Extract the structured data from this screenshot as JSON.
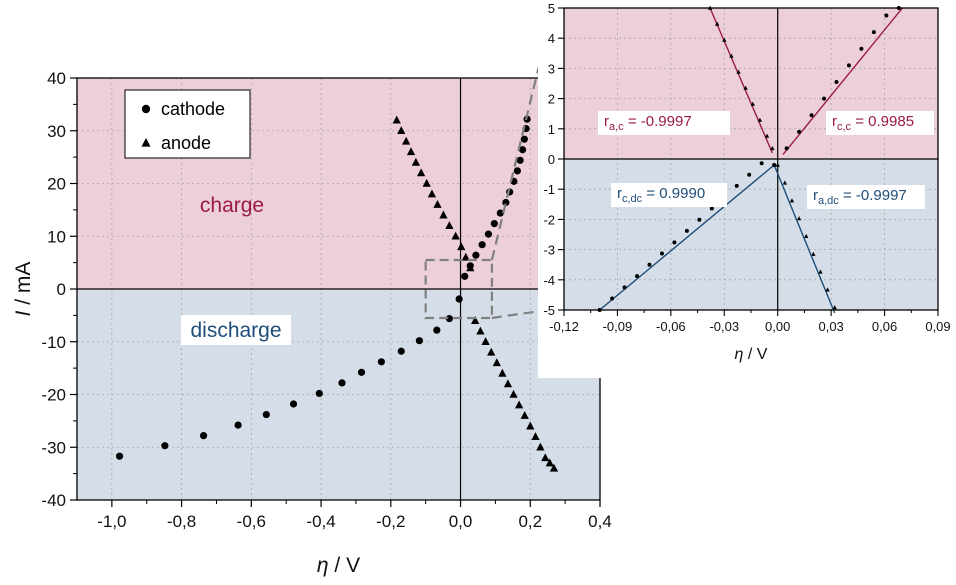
{
  "colors": {
    "charge_bg": "#edcfda",
    "discharge_bg": "#d5dee8",
    "charge_text": "#9a1a44",
    "discharge_text": "#1f4e79",
    "grid": "#a8a8a8",
    "markers": "#000000",
    "zoom_box": "#808080"
  },
  "chart_data": [
    {
      "type": "scatter",
      "id": "main",
      "xlabel_symbol": "η",
      "xlabel_unit": " / V",
      "ylabel_symbol": "I",
      "ylabel_unit": " / mA",
      "xlim": [
        -1.1,
        0.4
      ],
      "ylim": [
        -40,
        40
      ],
      "xticks": [
        -1.0,
        -0.8,
        -0.6,
        -0.4,
        -0.2,
        0.0,
        0.2,
        0.4
      ],
      "xtick_labels": [
        "-1,0",
        "-0,8",
        "-0,6",
        "-0,4",
        "-0,2",
        "0,0",
        "0,2",
        "0,4"
      ],
      "yticks": [
        -40,
        -30,
        -20,
        -10,
        0,
        10,
        20,
        30,
        40
      ],
      "ytick_labels": [
        "-40",
        "-30",
        "-20",
        "-10",
        "0",
        "10",
        "20",
        "30",
        "40"
      ],
      "grid": true,
      "legend": {
        "position": "top-left",
        "entries": [
          {
            "label": "cathode",
            "marker": "circle"
          },
          {
            "label": "anode",
            "marker": "triangle"
          }
        ]
      },
      "region_labels": {
        "charge": "charge",
        "discharge": "discharge"
      },
      "series": [
        {
          "name": "cathode",
          "marker": "circle",
          "x": [
            -0.978,
            -0.848,
            -0.737,
            -0.638,
            -0.557,
            -0.479,
            -0.405,
            -0.34,
            -0.284,
            -0.227,
            -0.17,
            -0.118,
            -0.068,
            -0.032,
            -0.004,
            0.012,
            0.028,
            0.044,
            0.062,
            0.08,
            0.097,
            0.114,
            0.13,
            0.141,
            0.153,
            0.163,
            0.171,
            0.178,
            0.183,
            0.188,
            0.191
          ],
          "y": [
            -31.7,
            -29.7,
            -27.8,
            -25.8,
            -23.8,
            -21.8,
            -19.8,
            -17.8,
            -15.8,
            -13.8,
            -11.8,
            -9.8,
            -7.8,
            -5.6,
            -1.9,
            2.4,
            4.4,
            6.4,
            8.4,
            10.4,
            12.4,
            14.4,
            16.4,
            18.4,
            20.4,
            22.4,
            24.4,
            26.4,
            28.4,
            30.4,
            32.2
          ],
          "label": "cathode"
        },
        {
          "name": "anode",
          "marker": "triangle",
          "x": [
            -0.183,
            -0.17,
            -0.156,
            -0.142,
            -0.128,
            -0.113,
            -0.097,
            -0.082,
            -0.066,
            -0.049,
            -0.032,
            -0.014,
            0.002,
            0.015,
            0.028,
            0.042,
            0.057,
            0.072,
            0.088,
            0.104,
            0.12,
            0.136,
            0.152,
            0.168,
            0.184,
            0.2,
            0.215,
            0.229,
            0.243,
            0.256,
            0.268
          ],
          "y": [
            32.0,
            30.0,
            28.0,
            26.0,
            24.0,
            22.0,
            20.0,
            18.0,
            16.0,
            14.0,
            12.0,
            10.0,
            8.0,
            6.0,
            4.0,
            -6.0,
            -8.0,
            -10.0,
            -12.0,
            -14.0,
            -16.0,
            -18.0,
            -20.0,
            -22.0,
            -24.0,
            -26.0,
            -28.0,
            -30.0,
            -32.0,
            -33.0,
            -34.0
          ],
          "label": "anode"
        }
      ],
      "zoom_box": {
        "x": [
          -0.1,
          0.09
        ],
        "y": [
          -5.5,
          5.5
        ]
      }
    },
    {
      "type": "scatter",
      "id": "inset",
      "xlabel_symbol": "η",
      "xlabel_unit": " / V",
      "xlim": [
        -0.12,
        0.09
      ],
      "ylim": [
        -5,
        5
      ],
      "xticks": [
        -0.12,
        -0.09,
        -0.06,
        -0.03,
        0.0,
        0.03,
        0.06,
        0.09
      ],
      "xtick_labels": [
        "-0,12",
        "-0,09",
        "-0,06",
        "-0,03",
        "0,00",
        "0,03",
        "0,06",
        "0,09"
      ],
      "yticks": [
        -5,
        -4,
        -3,
        -2,
        -1,
        0,
        1,
        2,
        3,
        4,
        5
      ],
      "ytick_labels": [
        "-5",
        "-4",
        "-3",
        "-2",
        "-1",
        "0",
        "1",
        "2",
        "3",
        "4",
        "5"
      ],
      "grid": true,
      "annotations": [
        {
          "base": "r",
          "sub": "a,c",
          "value": " = -0.9997",
          "region": "charge"
        },
        {
          "base": "r",
          "sub": "c,c",
          "value": " = 0.9985",
          "region": "charge"
        },
        {
          "base": "r",
          "sub": "c,dc",
          "value": " = 0.9990",
          "region": "discharge"
        },
        {
          "base": "r",
          "sub": "a,dc",
          "value": " = -0.9997",
          "region": "discharge"
        }
      ],
      "series": [
        {
          "name": "cathode",
          "marker": "circle",
          "x": [
            -0.1,
            -0.093,
            -0.086,
            -0.079,
            -0.072,
            -0.065,
            -0.058,
            -0.051,
            -0.044,
            -0.037,
            -0.03,
            -0.023,
            -0.016,
            -0.009,
            -0.002,
            0.005,
            0.012,
            0.019,
            0.026,
            0.033,
            0.04,
            0.047,
            0.054,
            0.061,
            0.068
          ],
          "y": [
            -5.0,
            -4.62,
            -4.25,
            -3.88,
            -3.5,
            -3.13,
            -2.76,
            -2.38,
            -2.01,
            -1.64,
            -1.26,
            -0.89,
            -0.52,
            -0.14,
            -0.2,
            0.35,
            0.9,
            1.45,
            2.0,
            2.55,
            3.1,
            3.65,
            4.2,
            4.75,
            5.0
          ]
        },
        {
          "name": "anode",
          "marker": "triangle",
          "x": [
            -0.038,
            -0.034,
            -0.03,
            -0.026,
            -0.022,
            -0.018,
            -0.014,
            -0.01,
            -0.006,
            -0.003,
            0.0,
            0.004,
            0.008,
            0.012,
            0.016,
            0.02,
            0.024,
            0.028,
            0.032
          ],
          "y": [
            5.0,
            4.47,
            3.94,
            3.41,
            2.88,
            2.35,
            1.82,
            1.29,
            0.76,
            0.35,
            -0.2,
            -0.79,
            -1.38,
            -1.97,
            -2.56,
            -3.15,
            -3.74,
            -4.33,
            -4.92
          ]
        }
      ]
    }
  ]
}
